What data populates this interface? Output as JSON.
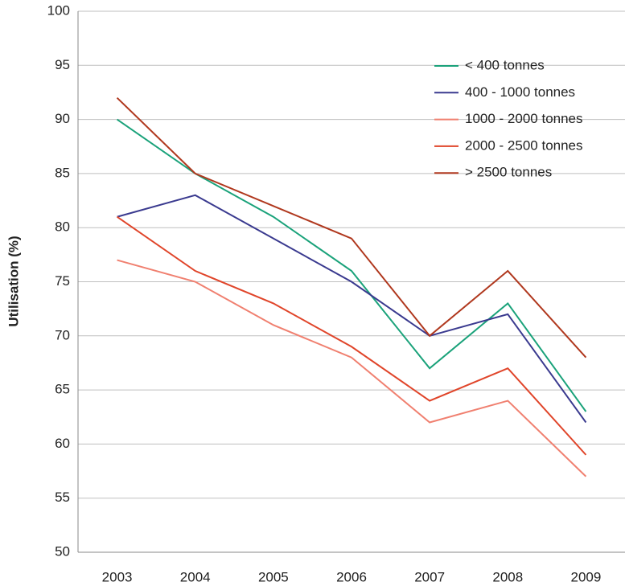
{
  "chart_data": {
    "type": "line",
    "y_label": "Utilisation (%)",
    "categories": [
      "2003",
      "2004",
      "2005",
      "2006",
      "2007",
      "2008",
      "2009"
    ],
    "series": [
      {
        "name": "< 400 tonnes",
        "color": "#1aa27a",
        "values": [
          90,
          85,
          81,
          76,
          67,
          73,
          63
        ]
      },
      {
        "name": "400 - 1000 tonnes",
        "color": "#3a3a8f",
        "values": [
          81,
          83,
          79,
          75,
          70,
          72,
          62
        ]
      },
      {
        "name": "1000 - 2000 tonnes",
        "color": "#f08070",
        "values": [
          77,
          75,
          71,
          68,
          62,
          64,
          57
        ]
      },
      {
        "name": "2000 - 2500 tonnes",
        "color": "#e0452a",
        "values": [
          81,
          76,
          73,
          69,
          64,
          67,
          59
        ]
      },
      {
        "name": "> 2500 tonnes",
        "color": "#b0381e",
        "values": [
          92,
          85,
          82,
          79,
          70,
          76,
          68
        ]
      }
    ],
    "ylim": [
      50,
      100
    ],
    "yticks": [
      50,
      55,
      60,
      65,
      70,
      75,
      80,
      85,
      90,
      95,
      100
    ],
    "grid": true,
    "legend": "upper-right"
  }
}
